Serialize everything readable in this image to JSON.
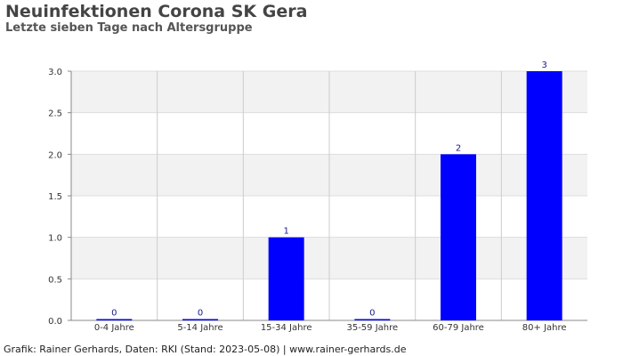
{
  "header": {
    "title": "Neuinfektionen Corona SK Gera",
    "subtitle": "Letzte sieben Tage nach Altersgruppe"
  },
  "footer": {
    "text": "Grafik: Rainer Gerhards, Daten: RKI (Stand: 2023-05-08) | www.rainer-gerhards.de"
  },
  "chart_data": {
    "type": "bar",
    "title": "Neuinfektionen Corona SK Gera",
    "subtitle": "Letzte sieben Tage nach Altersgruppe",
    "xlabel": "",
    "ylabel": "",
    "categories": [
      "0-4 Jahre",
      "5-14 Jahre",
      "15-34 Jahre",
      "35-59 Jahre",
      "60-79 Jahre",
      "80+ Jahre"
    ],
    "values": [
      0,
      0,
      1,
      0,
      2,
      3
    ],
    "data_labels": [
      "0",
      "0",
      "1",
      "0",
      "2",
      "3"
    ],
    "ylim": [
      0,
      3
    ],
    "yticks": [
      "0.0",
      "0.5",
      "1.0",
      "1.5",
      "2.0",
      "2.5",
      "3.0"
    ],
    "grid": true,
    "bar_color": "#0000ff",
    "band_color": "#f2f2f2"
  }
}
